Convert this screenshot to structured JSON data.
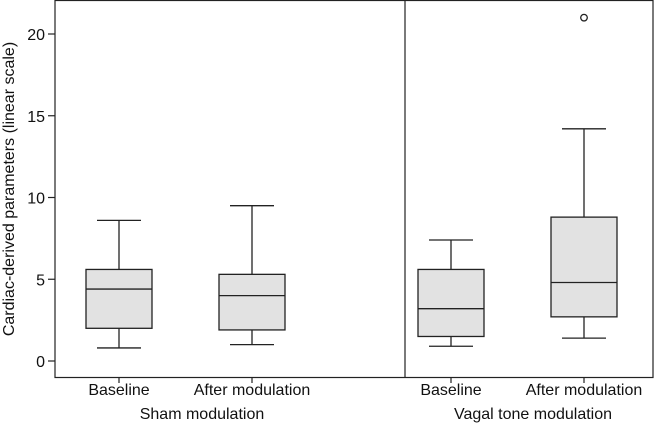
{
  "chart_data": {
    "type": "boxplot",
    "title": "",
    "ylabel": "Cardiac-derived parameters (linear scale)",
    "xlabel": "",
    "ylim": [
      -0.3,
      22
    ],
    "yticks": [
      0,
      5,
      10,
      15,
      20
    ],
    "grid": false,
    "groups": [
      {
        "name": "Sham modulation",
        "boxes": [
          {
            "label": "Baseline",
            "min": 0.8,
            "q1": 2.0,
            "median": 4.4,
            "q3": 5.6,
            "max": 8.6,
            "outliers": []
          },
          {
            "label": "After modulation",
            "min": 1.0,
            "q1": 1.9,
            "median": 4.0,
            "q3": 5.3,
            "max": 9.5,
            "outliers": []
          }
        ]
      },
      {
        "name": "Vagal tone modulation",
        "boxes": [
          {
            "label": "Baseline",
            "min": 0.9,
            "q1": 1.5,
            "median": 3.2,
            "q3": 5.6,
            "max": 7.4,
            "outliers": []
          },
          {
            "label": "After modulation",
            "min": 1.4,
            "q1": 2.7,
            "median": 4.8,
            "q3": 8.8,
            "max": 14.2,
            "outliers": [
              21.0
            ]
          }
        ]
      }
    ]
  }
}
